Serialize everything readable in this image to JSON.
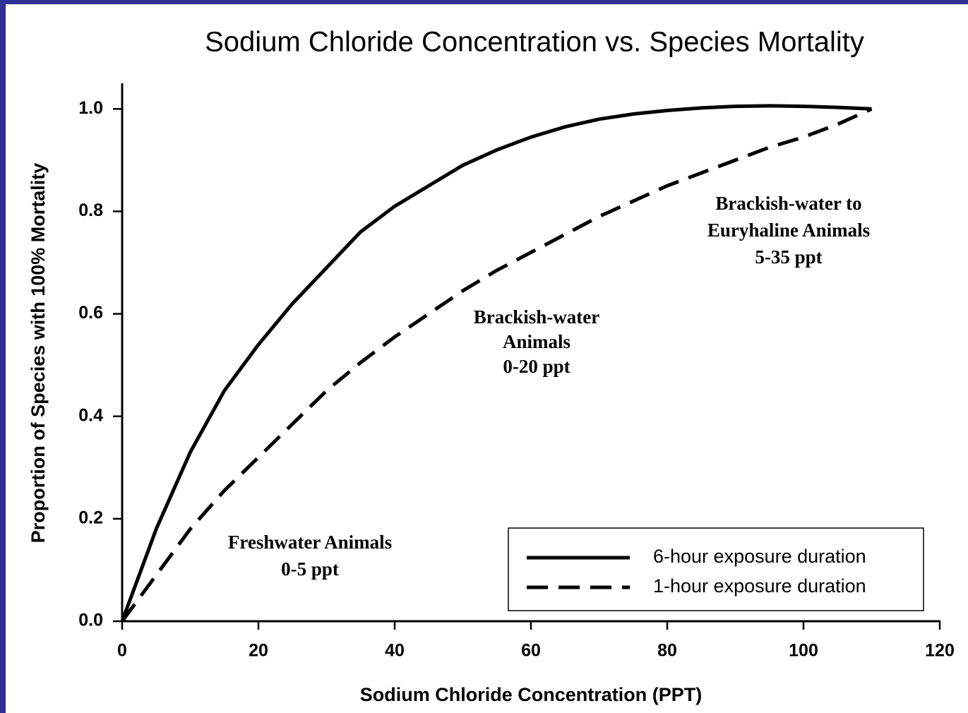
{
  "chart_data": {
    "type": "line",
    "title": "Sodium Chloride Concentration vs. Species Mortality",
    "xlabel": "Sodium Chloride Concentration (PPT)",
    "ylabel": "Proportion of Species with 100% Mortality",
    "x": [
      0,
      5,
      10,
      15,
      20,
      25,
      30,
      35,
      40,
      45,
      50,
      55,
      60,
      65,
      70,
      75,
      80,
      85,
      90,
      95,
      100,
      105,
      110
    ],
    "series": [
      {
        "name": "6-hour exposure duration",
        "color": "#000000",
        "style": "solid",
        "values": [
          0,
          0.18,
          0.33,
          0.45,
          0.54,
          0.62,
          0.69,
          0.76,
          0.81,
          0.85,
          0.89,
          0.92,
          0.945,
          0.965,
          0.98,
          0.99,
          0.997,
          1.002,
          1.005,
          1.006,
          1.005,
          1.003,
          1.0
        ]
      },
      {
        "name": "1-hour exposure duration",
        "color": "#000000",
        "style": "dashed",
        "values": [
          0,
          0.09,
          0.18,
          0.255,
          0.32,
          0.385,
          0.45,
          0.505,
          0.555,
          0.6,
          0.645,
          0.685,
          0.72,
          0.755,
          0.79,
          0.82,
          0.85,
          0.875,
          0.9,
          0.925,
          0.945,
          0.97,
          1.0
        ]
      }
    ],
    "xlim": [
      0,
      120
    ],
    "xticks": [
      0,
      20,
      40,
      60,
      80,
      100,
      120
    ],
    "ylim": [
      0,
      1.05
    ],
    "yticks": [
      {
        "value": 0,
        "label": "0.0"
      },
      {
        "value": 0.2,
        "label": "0.2"
      },
      {
        "value": 0.4,
        "label": "0.4"
      },
      {
        "value": 0.6,
        "label": "0.6"
      },
      {
        "value": 0.8,
        "label": "0.8"
      },
      {
        "value": 1,
        "label": "1.0"
      }
    ],
    "legend": "lower right",
    "annotations": [
      {
        "lines": [
          "Freshwater Animals",
          "0-5 ppt"
        ]
      },
      {
        "lines": [
          "Brackish-water",
          "Animals",
          "0-20 ppt"
        ]
      },
      {
        "lines": [
          "Brackish-water to",
          "Euryhaline Animals",
          "5-35 ppt"
        ]
      }
    ]
  }
}
